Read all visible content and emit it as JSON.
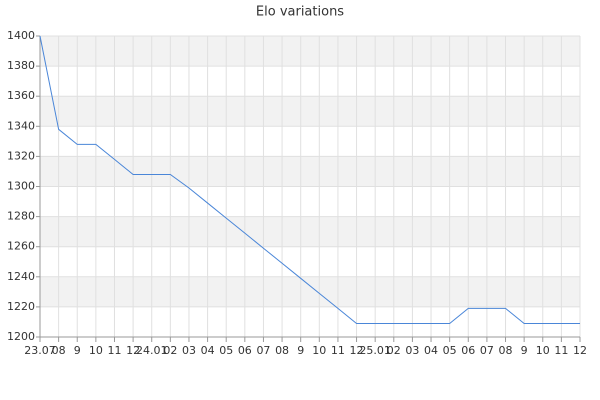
{
  "chart_data": {
    "type": "line",
    "title": "Elo variations",
    "categories": [
      "23.07",
      "08",
      "9",
      "10",
      "11",
      "12",
      "24.01",
      "02",
      "03",
      "04",
      "05",
      "06",
      "07",
      "08",
      "9",
      "10",
      "11",
      "12",
      "25.01",
      "02",
      "03",
      "04",
      "05",
      "06",
      "07",
      "08",
      "9",
      "10",
      "11",
      "12"
    ],
    "series": [
      {
        "name": "Elo",
        "color": "#4a86d8",
        "values": [
          1400,
          1338,
          1328,
          1328,
          1318,
          1308,
          1308,
          1308,
          1299,
          1289,
          1279,
          1269,
          1259,
          1249,
          1239,
          1229,
          1219,
          1209,
          1209,
          1209,
          1209,
          1209,
          1209,
          1219,
          1219,
          1219,
          1209,
          1209,
          1209,
          1209
        ]
      }
    ],
    "ylim": [
      1200,
      1400
    ],
    "yticks": [
      1200,
      1220,
      1240,
      1260,
      1280,
      1300,
      1320,
      1340,
      1360,
      1380,
      1400
    ],
    "grid": true
  }
}
